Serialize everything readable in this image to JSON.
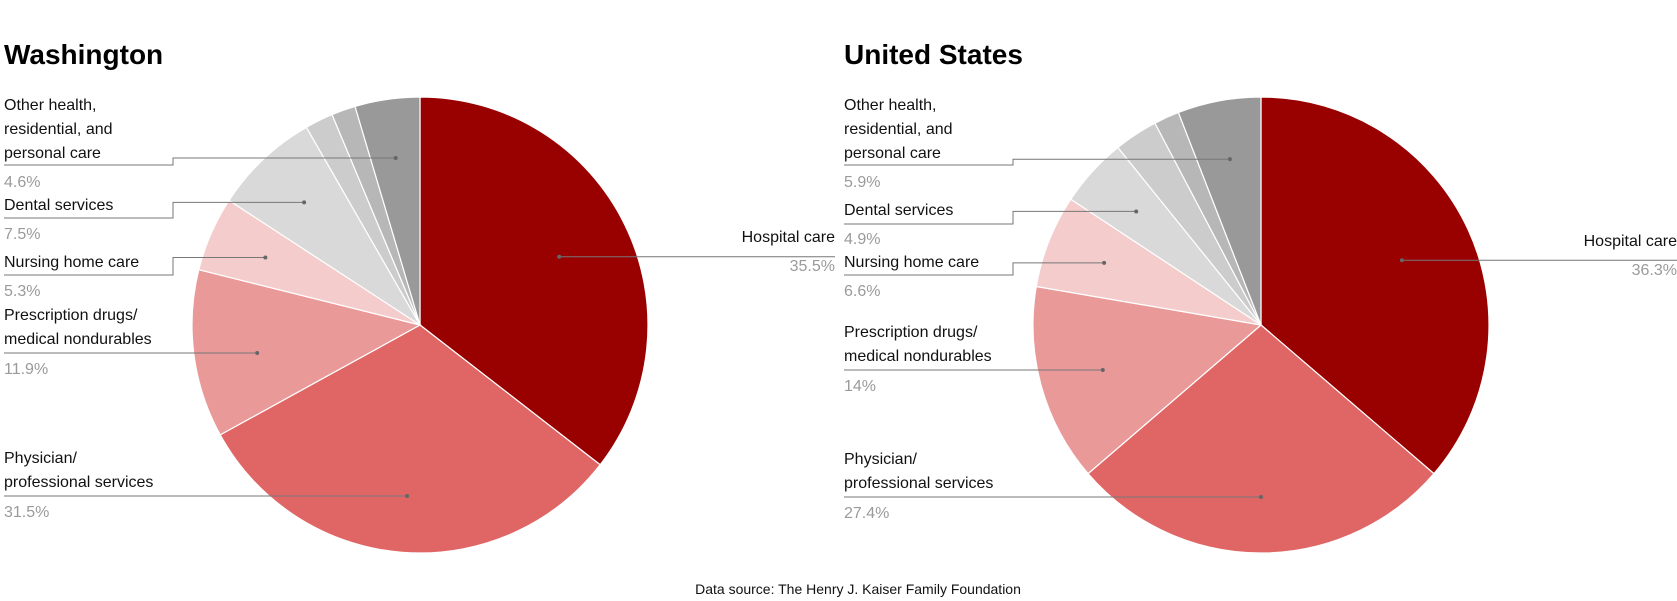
{
  "source_note": "Data source: The Henry J. Kaiser Family Foundation",
  "chart_data": [
    {
      "type": "pie",
      "title": "Washington",
      "slices": [
        {
          "label": "Hospital care",
          "value": 35.5,
          "pct_label": "35.5%",
          "color": "#990000"
        },
        {
          "label": "Physician/ professional services",
          "value": 31.5,
          "pct_label": "31.5%",
          "color": "#e06666"
        },
        {
          "label": "Prescription drugs/ medical nondurables",
          "value": 11.9,
          "pct_label": "11.9%",
          "color": "#ea9999"
        },
        {
          "label": "Nursing home care",
          "value": 5.3,
          "pct_label": "5.3%",
          "color": "#f4cccc"
        },
        {
          "label": "Dental services",
          "value": 7.5,
          "pct_label": "7.5%",
          "color": "#d9d9d9"
        },
        {
          "label": "",
          "value": 2.0,
          "pct_label": "",
          "color": "#cccccc"
        },
        {
          "label": "",
          "value": 1.7,
          "pct_label": "",
          "color": "#b7b7b7"
        },
        {
          "label": "Other health, residential, and personal care",
          "value": 4.6,
          "pct_label": "4.6%",
          "color": "#999999"
        }
      ]
    },
    {
      "type": "pie",
      "title": "United States",
      "slices": [
        {
          "label": "Hospital care",
          "value": 36.3,
          "pct_label": "36.3%",
          "color": "#990000"
        },
        {
          "label": "Physician/ professional services",
          "value": 27.4,
          "pct_label": "27.4%",
          "color": "#e06666"
        },
        {
          "label": "Prescription drugs/ medical nondurables",
          "value": 14,
          "pct_label": "14%",
          "color": "#ea9999"
        },
        {
          "label": "Nursing home care",
          "value": 6.6,
          "pct_label": "6.6%",
          "color": "#f4cccc"
        },
        {
          "label": "Dental services",
          "value": 4.9,
          "pct_label": "4.9%",
          "color": "#d9d9d9"
        },
        {
          "label": "",
          "value": 3.1,
          "pct_label": "",
          "color": "#cccccc"
        },
        {
          "label": "",
          "value": 1.8,
          "pct_label": "",
          "color": "#b7b7b7"
        },
        {
          "label": "Other health, residential, and personal care",
          "value": 5.9,
          "pct_label": "5.9%",
          "color": "#999999"
        }
      ]
    }
  ]
}
